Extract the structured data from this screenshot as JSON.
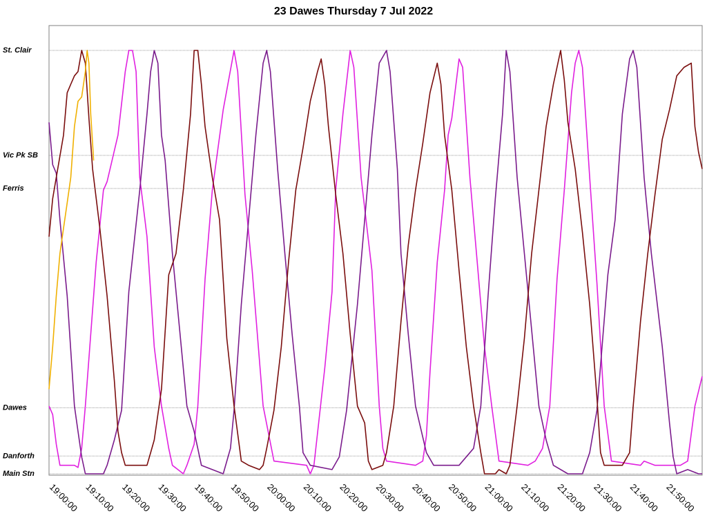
{
  "chart_data": {
    "type": "line",
    "title": "23 Dawes Thursday 7 Jul 2022",
    "xlabel": "",
    "ylabel": "",
    "x_unit": "minutes after 19:00",
    "xlim": [
      0,
      180
    ],
    "x_ticks": [
      {
        "t": 0,
        "label": "19:00:00"
      },
      {
        "t": 10,
        "label": "19:10:00"
      },
      {
        "t": 20,
        "label": "19:20:00"
      },
      {
        "t": 30,
        "label": "19:30:00"
      },
      {
        "t": 40,
        "label": "19:40:00"
      },
      {
        "t": 50,
        "label": "19:50:00"
      },
      {
        "t": 60,
        "label": "20:00:00"
      },
      {
        "t": 70,
        "label": "20:10:00"
      },
      {
        "t": 80,
        "label": "20:20:00"
      },
      {
        "t": 90,
        "label": "20:30:00"
      },
      {
        "t": 100,
        "label": "20:40:00"
      },
      {
        "t": 110,
        "label": "20:50:00"
      },
      {
        "t": 120,
        "label": "21:00:00"
      },
      {
        "t": 130,
        "label": "21:10:00"
      },
      {
        "t": 140,
        "label": "21:20:00"
      },
      {
        "t": 150,
        "label": "21:30:00"
      },
      {
        "t": 160,
        "label": "21:40:00"
      },
      {
        "t": 170,
        "label": "21:50:00"
      }
    ],
    "stops": [
      {
        "name": "St. Clair",
        "pos": 1.0
      },
      {
        "name": "Vic Pk SB",
        "pos": 0.752
      },
      {
        "name": "Ferris",
        "pos": 0.674
      },
      {
        "name": "Dawes",
        "pos": 0.156
      },
      {
        "name": "Danforth",
        "pos": 0.042
      },
      {
        "name": "Main Stn",
        "pos": 0.0
      }
    ],
    "ylim": [
      0,
      1
    ],
    "grid": "horizontal at stops",
    "legend": "none",
    "series": [
      {
        "color": "#e020e0",
        "points": [
          [
            0,
            0.16
          ],
          [
            1,
            0.14
          ],
          [
            2,
            0.07
          ],
          [
            3,
            0.02
          ],
          [
            7,
            0.02
          ],
          [
            8,
            0.015
          ],
          [
            9,
            0.06
          ],
          [
            10,
            0.16
          ],
          [
            13,
            0.5
          ],
          [
            15,
            0.67
          ],
          [
            16,
            0.69
          ],
          [
            19,
            0.8
          ],
          [
            21,
            0.95
          ],
          [
            22,
            1
          ],
          [
            23,
            1
          ],
          [
            24,
            0.95
          ],
          [
            25,
            0.7
          ],
          [
            27,
            0.56
          ],
          [
            29,
            0.3
          ],
          [
            31,
            0.16
          ],
          [
            33,
            0.06
          ],
          [
            34,
            0.02
          ],
          [
            37,
            0.0
          ],
          [
            38,
            0.02
          ],
          [
            40,
            0.07
          ],
          [
            41,
            0.16
          ],
          [
            43,
            0.46
          ],
          [
            45,
            0.67
          ],
          [
            48,
            0.86
          ],
          [
            51,
            1
          ],
          [
            52,
            0.95
          ],
          [
            54,
            0.66
          ],
          [
            56,
            0.48
          ],
          [
            59,
            0.16
          ],
          [
            62,
            0.03
          ],
          [
            71,
            0.02
          ],
          [
            72,
            0.0
          ],
          [
            73,
            0.02
          ],
          [
            76,
            0.25
          ],
          [
            78,
            0.43
          ],
          [
            79,
            0.67
          ],
          [
            81,
            0.85
          ],
          [
            83,
            1
          ],
          [
            84,
            0.96
          ],
          [
            86,
            0.7
          ],
          [
            89,
            0.48
          ],
          [
            91,
            0.16
          ],
          [
            92,
            0.06
          ],
          [
            93,
            0.03
          ],
          [
            101,
            0.02
          ],
          [
            103,
            0.03
          ],
          [
            104,
            0.09
          ],
          [
            105,
            0.24
          ],
          [
            107,
            0.5
          ],
          [
            109,
            0.67
          ],
          [
            110,
            0.8
          ],
          [
            111,
            0.84
          ],
          [
            113,
            0.98
          ],
          [
            114,
            0.96
          ],
          [
            116,
            0.7
          ],
          [
            118,
            0.5
          ],
          [
            120,
            0.3
          ],
          [
            122,
            0.16
          ],
          [
            124,
            0.03
          ],
          [
            132,
            0.02
          ],
          [
            134,
            0.03
          ],
          [
            136,
            0.06
          ],
          [
            138,
            0.16
          ],
          [
            140,
            0.46
          ],
          [
            142,
            0.67
          ],
          [
            144,
            0.9
          ],
          [
            145,
            0.97
          ],
          [
            146,
            1
          ],
          [
            147,
            0.96
          ],
          [
            149,
            0.7
          ],
          [
            151,
            0.45
          ],
          [
            153,
            0.16
          ],
          [
            155,
            0.03
          ],
          [
            163,
            0.02
          ],
          [
            164,
            0.03
          ],
          [
            167,
            0.02
          ],
          [
            174,
            0.02
          ],
          [
            176,
            0.03
          ],
          [
            178,
            0.16
          ],
          [
            180,
            0.23
          ]
        ]
      },
      {
        "color": "#7a1b8c",
        "points": [
          [
            0,
            0.83
          ],
          [
            1,
            0.73
          ],
          [
            2,
            0.71
          ],
          [
            3,
            0.6
          ],
          [
            5,
            0.42
          ],
          [
            7,
            0.16
          ],
          [
            8,
            0.1
          ],
          [
            9,
            0.04
          ],
          [
            10,
            0.0
          ],
          [
            15,
            0.0
          ],
          [
            16,
            0.02
          ],
          [
            18,
            0.08
          ],
          [
            20,
            0.15
          ],
          [
            22,
            0.43
          ],
          [
            25,
            0.67
          ],
          [
            27,
            0.85
          ],
          [
            28,
            0.95
          ],
          [
            29,
            1
          ],
          [
            30,
            0.97
          ],
          [
            31,
            0.8
          ],
          [
            32,
            0.74
          ],
          [
            34,
            0.52
          ],
          [
            36,
            0.34
          ],
          [
            38,
            0.16
          ],
          [
            40,
            0.1
          ],
          [
            42,
            0.02
          ],
          [
            48,
            0.0
          ],
          [
            50,
            0.06
          ],
          [
            51,
            0.15
          ],
          [
            53,
            0.4
          ],
          [
            55,
            0.6
          ],
          [
            57,
            0.8
          ],
          [
            59,
            0.97
          ],
          [
            60,
            1
          ],
          [
            61,
            0.95
          ],
          [
            63,
            0.72
          ],
          [
            65,
            0.52
          ],
          [
            67,
            0.33
          ],
          [
            69,
            0.16
          ],
          [
            70,
            0.05
          ],
          [
            72,
            0.02
          ],
          [
            78,
            0.01
          ],
          [
            80,
            0.04
          ],
          [
            82,
            0.15
          ],
          [
            85,
            0.4
          ],
          [
            87,
            0.6
          ],
          [
            89,
            0.8
          ],
          [
            91,
            0.97
          ],
          [
            93,
            1
          ],
          [
            94,
            0.95
          ],
          [
            96,
            0.72
          ],
          [
            97,
            0.52
          ],
          [
            99,
            0.33
          ],
          [
            101,
            0.16
          ],
          [
            104,
            0.05
          ],
          [
            106,
            0.02
          ],
          [
            113,
            0.02
          ],
          [
            117,
            0.06
          ],
          [
            119,
            0.16
          ],
          [
            121,
            0.42
          ],
          [
            123,
            0.65
          ],
          [
            125,
            0.85
          ],
          [
            126,
            1
          ],
          [
            127,
            0.95
          ],
          [
            129,
            0.7
          ],
          [
            131,
            0.52
          ],
          [
            133,
            0.34
          ],
          [
            135,
            0.16
          ],
          [
            137,
            0.08
          ],
          [
            139,
            0.02
          ],
          [
            143,
            0.0
          ],
          [
            147,
            0.0
          ],
          [
            149,
            0.05
          ],
          [
            151,
            0.15
          ],
          [
            154,
            0.47
          ],
          [
            156,
            0.6
          ],
          [
            158,
            0.85
          ],
          [
            160,
            0.98
          ],
          [
            161,
            1
          ],
          [
            162,
            0.96
          ],
          [
            164,
            0.7
          ],
          [
            166,
            0.52
          ],
          [
            169,
            0.3
          ],
          [
            171,
            0.12
          ],
          [
            172,
            0.04
          ],
          [
            173,
            0.0
          ],
          [
            176,
            0.01
          ],
          [
            179,
            0.0
          ],
          [
            180,
            0.0
          ]
        ]
      },
      {
        "color": "#7a0d0d",
        "points": [
          [
            0,
            0.56
          ],
          [
            1,
            0.65
          ],
          [
            2,
            0.7
          ],
          [
            4,
            0.8
          ],
          [
            5,
            0.9
          ],
          [
            6,
            0.92
          ],
          [
            7,
            0.94
          ],
          [
            8,
            0.95
          ],
          [
            9,
            1
          ],
          [
            10,
            0.97
          ],
          [
            11,
            0.84
          ],
          [
            12,
            0.72
          ],
          [
            14,
            0.58
          ],
          [
            16,
            0.42
          ],
          [
            18,
            0.22
          ],
          [
            19,
            0.1
          ],
          [
            20,
            0.05
          ],
          [
            21,
            0.02
          ],
          [
            27,
            0.02
          ],
          [
            28,
            0.05
          ],
          [
            29,
            0.08
          ],
          [
            31,
            0.2
          ],
          [
            33,
            0.47
          ],
          [
            35,
            0.52
          ],
          [
            37,
            0.67
          ],
          [
            39,
            0.85
          ],
          [
            40,
            1
          ],
          [
            41,
            1
          ],
          [
            42,
            0.92
          ],
          [
            43,
            0.82
          ],
          [
            45,
            0.7
          ],
          [
            47,
            0.6
          ],
          [
            49,
            0.32
          ],
          [
            51,
            0.16
          ],
          [
            53,
            0.03
          ],
          [
            55,
            0.02
          ],
          [
            58,
            0.01
          ],
          [
            59,
            0.02
          ],
          [
            60,
            0.06
          ],
          [
            62,
            0.15
          ],
          [
            64,
            0.3
          ],
          [
            66,
            0.5
          ],
          [
            68,
            0.67
          ],
          [
            70,
            0.77
          ],
          [
            72,
            0.88
          ],
          [
            74,
            0.95
          ],
          [
            75,
            0.98
          ],
          [
            76,
            0.92
          ],
          [
            77,
            0.82
          ],
          [
            79,
            0.66
          ],
          [
            81,
            0.52
          ],
          [
            83,
            0.33
          ],
          [
            85,
            0.16
          ],
          [
            87,
            0.12
          ],
          [
            88,
            0.03
          ],
          [
            89,
            0.01
          ],
          [
            92,
            0.02
          ],
          [
            93,
            0.05
          ],
          [
            95,
            0.16
          ],
          [
            97,
            0.36
          ],
          [
            99,
            0.54
          ],
          [
            101,
            0.67
          ],
          [
            103,
            0.78
          ],
          [
            105,
            0.9
          ],
          [
            107,
            0.97
          ],
          [
            108,
            0.92
          ],
          [
            109,
            0.8
          ],
          [
            111,
            0.67
          ],
          [
            113,
            0.48
          ],
          [
            115,
            0.3
          ],
          [
            117,
            0.16
          ],
          [
            119,
            0.05
          ],
          [
            120,
            0.0
          ],
          [
            123,
            0.0
          ],
          [
            124,
            0.01
          ],
          [
            126,
            0.0
          ],
          [
            127,
            0.02
          ],
          [
            129,
            0.16
          ],
          [
            131,
            0.32
          ],
          [
            133,
            0.52
          ],
          [
            135,
            0.67
          ],
          [
            137,
            0.82
          ],
          [
            139,
            0.92
          ],
          [
            141,
            1
          ],
          [
            142,
            0.93
          ],
          [
            143,
            0.83
          ],
          [
            145,
            0.72
          ],
          [
            147,
            0.57
          ],
          [
            149,
            0.4
          ],
          [
            151,
            0.18
          ],
          [
            152,
            0.05
          ],
          [
            153,
            0.02
          ],
          [
            158,
            0.02
          ],
          [
            160,
            0.05
          ],
          [
            161,
            0.16
          ],
          [
            163,
            0.36
          ],
          [
            165,
            0.52
          ],
          [
            167,
            0.66
          ],
          [
            169,
            0.79
          ],
          [
            171,
            0.86
          ],
          [
            173,
            0.94
          ],
          [
            175,
            0.96
          ],
          [
            177,
            0.97
          ],
          [
            178,
            0.82
          ],
          [
            179,
            0.76
          ],
          [
            180,
            0.72
          ]
        ]
      },
      {
        "color": "#f0b000",
        "points": [
          [
            0,
            0.2
          ],
          [
            1,
            0.3
          ],
          [
            2,
            0.42
          ],
          [
            3,
            0.52
          ],
          [
            4,
            0.58
          ],
          [
            5,
            0.64
          ],
          [
            6,
            0.7
          ],
          [
            7,
            0.82
          ],
          [
            8,
            0.88
          ],
          [
            9,
            0.89
          ],
          [
            10,
            0.95
          ],
          [
            10.5,
            1
          ],
          [
            11,
            0.97
          ],
          [
            11.5,
            0.85
          ],
          [
            12,
            0.78
          ],
          [
            12.3,
            0.74
          ]
        ]
      }
    ]
  }
}
